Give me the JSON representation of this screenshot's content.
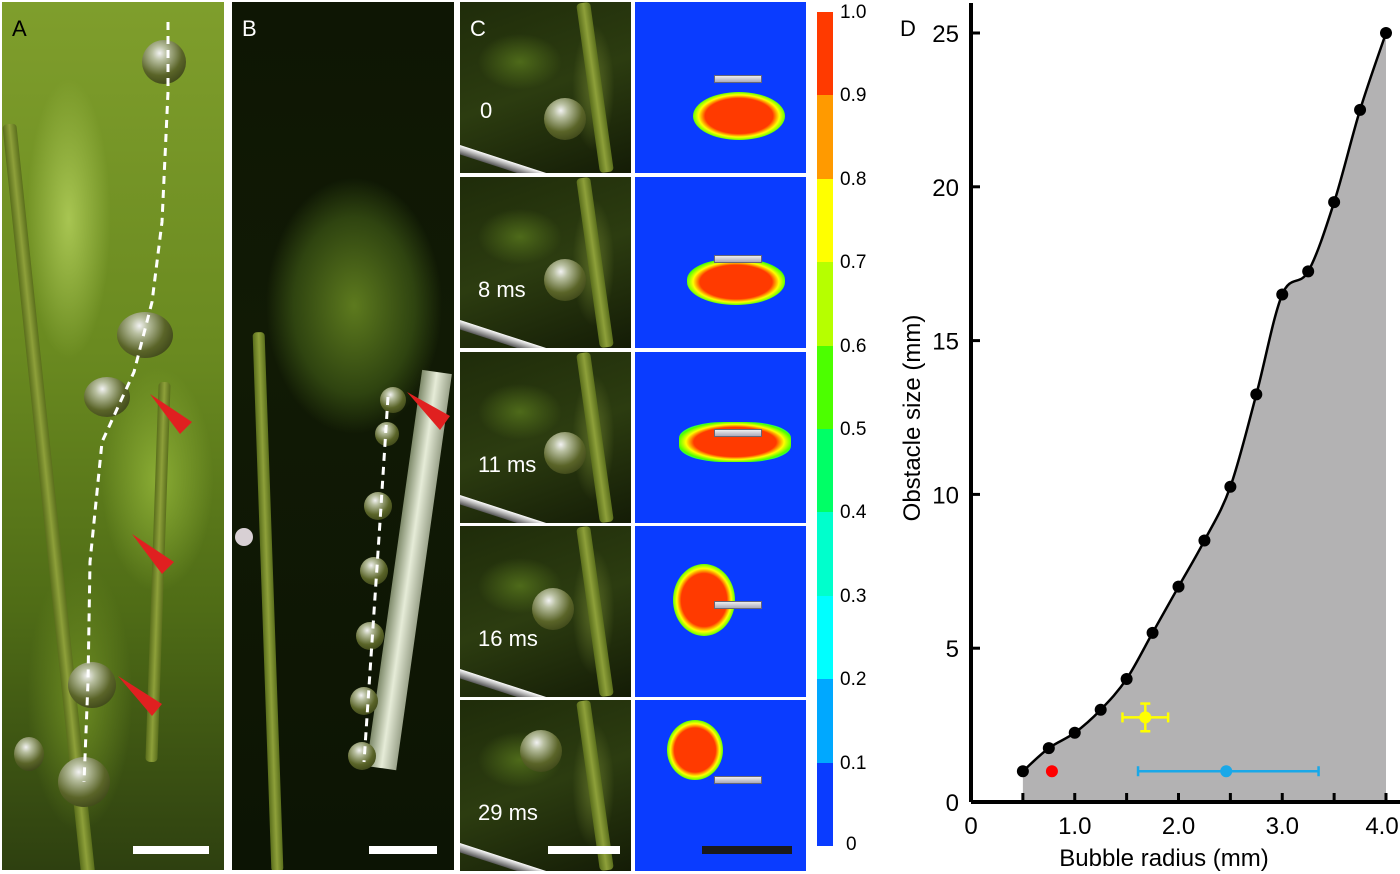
{
  "figure": {
    "panels": {
      "A": {
        "letter": "A",
        "letter_color": "#000000",
        "arrowheads": 3,
        "description": "plant with bubbles along dashed path"
      },
      "B": {
        "letter": "B",
        "letter_color": "#ffffff",
        "arrowheads": 1,
        "description": "plant with beads of bubbles next to needle"
      },
      "C": {
        "letter": "C",
        "frames": [
          {
            "label": "0"
          },
          {
            "label": "8 ms"
          },
          {
            "label": "11 ms"
          },
          {
            "label": "16 ms"
          },
          {
            "label": "29 ms"
          }
        ],
        "colorbar": {
          "labels": [
            "1.0",
            "0.9",
            "0.8",
            "0.7",
            "0.6",
            "0.5",
            "0.4",
            "0.3",
            "0.2",
            "0.1",
            "0"
          ],
          "colors": [
            "#ff3a00",
            "#ff9a00",
            "#ffff00",
            "#b6ff00",
            "#4cff00",
            "#00ff66",
            "#00ffcc",
            "#00ffff",
            "#00a8ff",
            "#0a3cff"
          ]
        }
      },
      "D": {
        "letter": "D"
      }
    },
    "accent_arrow_color": "#e02020"
  },
  "chart_data": {
    "type": "area",
    "panel": "D",
    "title": "",
    "xlabel": "Bubble radius (mm)",
    "ylabel": "Obstacle size (mm)",
    "xlim": [
      0,
      4.0
    ],
    "ylim": [
      0,
      25
    ],
    "xticks": [
      0,
      0.5,
      1.0,
      1.5,
      2.0,
      2.5,
      3.0,
      3.5,
      4.0
    ],
    "xtick_labels": [
      {
        "value": 0,
        "label": "0"
      },
      {
        "value": 1.0,
        "label": "1.0"
      },
      {
        "value": 2.0,
        "label": "2.0"
      },
      {
        "value": 3.0,
        "label": "3.0"
      },
      {
        "value": 4.0,
        "label": "4.0"
      }
    ],
    "yticks": [
      0,
      5,
      10,
      15,
      20,
      25
    ],
    "ytick_labels": [
      "0",
      "5",
      "10",
      "15",
      "20",
      "25"
    ],
    "grid": false,
    "legend": "none",
    "series": [
      {
        "name": "threshold",
        "color": "#000000",
        "fill": "#b3b2b3",
        "x": [
          0.5,
          0.75,
          1.0,
          1.25,
          1.5,
          1.75,
          2.0,
          2.25,
          2.5,
          2.75,
          3.0,
          3.25,
          3.5,
          3.75,
          4.0
        ],
        "y": [
          1.0,
          1.75,
          2.25,
          3.0,
          4.0,
          5.5,
          7.0,
          8.5,
          10.25,
          13.25,
          16.5,
          17.25,
          19.5,
          22.5,
          25.0
        ]
      }
    ],
    "points": [
      {
        "name": "red-point",
        "color": "#ff0000",
        "x": 0.78,
        "y": 1.0,
        "xerr": null,
        "yerr": null
      },
      {
        "name": "yellow-point",
        "color": "#ffff00",
        "x": 1.68,
        "y": 2.75,
        "xerr": [
          1.46,
          1.9
        ],
        "yerr": [
          2.3,
          3.2
        ]
      },
      {
        "name": "blue-point",
        "color": "#1aa8e8",
        "x": 2.46,
        "y": 1.0,
        "xerr": [
          1.61,
          3.35
        ],
        "yerr": null
      }
    ]
  }
}
